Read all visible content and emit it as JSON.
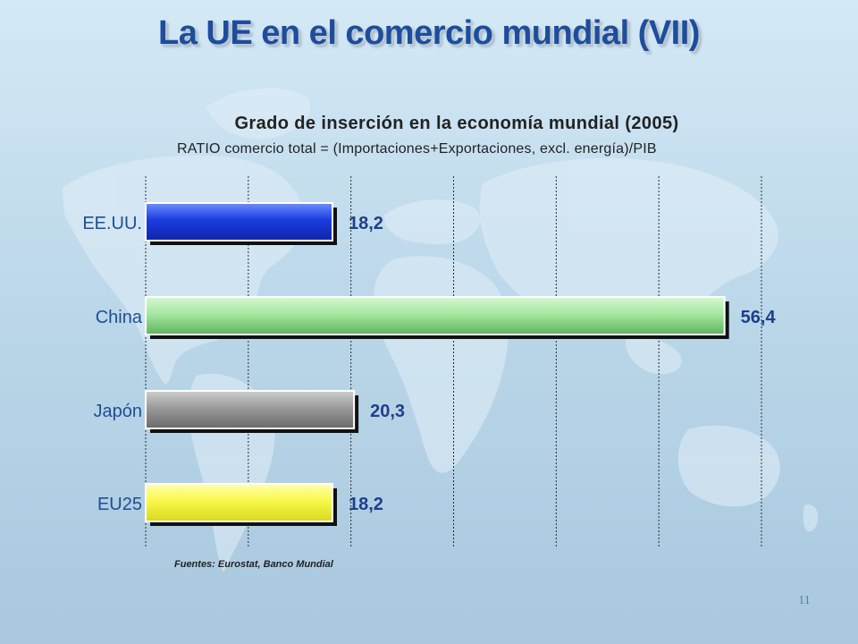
{
  "slide": {
    "title": "La UE en el comercio mundial (VII)",
    "source_note": "Fuentes: Eurostat, Banco Mundial",
    "page_number": "11"
  },
  "chart_data": {
    "type": "bar",
    "orientation": "horizontal",
    "title": "Grado de inserción en la economía mundial (2005)",
    "subtitle": "RATIO comercio total = (Importaciones+Exportaciones, excl. energía)/PIB",
    "categories": [
      "EE.UU.",
      "China",
      "Japón",
      "EU25"
    ],
    "values": [
      18.2,
      56.4,
      20.3,
      18.2
    ],
    "value_labels": [
      "18,2",
      "56,4",
      "20,3",
      "18,2"
    ],
    "bar_colors": [
      "#1a3de0",
      "#8fdc8c",
      "#8a8a8a",
      "#f4f43a"
    ],
    "xlim": [
      0,
      60
    ],
    "grid": "vertical dashed",
    "legend": "none"
  },
  "colors": {
    "title": "#1d4d9c",
    "value_label": "#1e3f8a",
    "category_label": "#1e4f94"
  }
}
